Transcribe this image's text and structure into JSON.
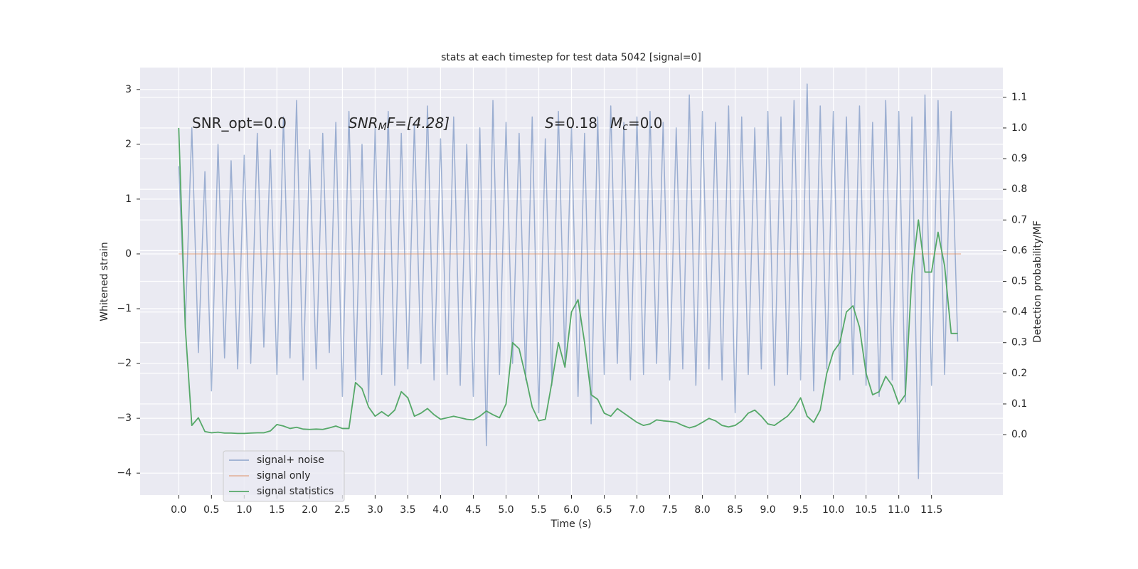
{
  "chart_data": {
    "type": "line",
    "title": "stats at each timestep for test data 5042 [signal=0]",
    "xlabel": "Time (s)",
    "ylabel": "Whitened strain",
    "y2label": "Detection probability/MF",
    "annotations": [
      {
        "base": "SNR_opt=0.0"
      },
      {
        "base": "SNR",
        "sub": "M",
        "rest": "F=[4.28]"
      },
      {
        "base": "S",
        "rest": "=0.18"
      },
      {
        "base": "M",
        "sub": "c",
        "rest": "=0.0"
      }
    ],
    "xlim": [
      -0.59,
      12.59
    ],
    "ylim": [
      -4.4,
      3.4
    ],
    "y2lim": [
      -0.197,
      1.197
    ],
    "xticks": [
      {
        "value": 0,
        "label": "0.0"
      },
      {
        "value": 0.5,
        "label": "0.5"
      },
      {
        "value": 1,
        "label": "1.0"
      },
      {
        "value": 1.5,
        "label": "1.5"
      },
      {
        "value": 2,
        "label": "2.0"
      },
      {
        "value": 2.5,
        "label": "2.5"
      },
      {
        "value": 3,
        "label": "3.0"
      },
      {
        "value": 3.5,
        "label": "3.5"
      },
      {
        "value": 4,
        "label": "4.0"
      },
      {
        "value": 4.5,
        "label": "4.5"
      },
      {
        "value": 5,
        "label": "5.0"
      },
      {
        "value": 5.5,
        "label": "5.5"
      },
      {
        "value": 6,
        "label": "6.0"
      },
      {
        "value": 6.5,
        "label": "6.5"
      },
      {
        "value": 7,
        "label": "7.0"
      },
      {
        "value": 7.5,
        "label": "7.5"
      },
      {
        "value": 8,
        "label": "8.0"
      },
      {
        "value": 8.5,
        "label": "8.5"
      },
      {
        "value": 9,
        "label": "9.0"
      },
      {
        "value": 9.5,
        "label": "9.5"
      },
      {
        "value": 10,
        "label": "10.0"
      },
      {
        "value": 10.5,
        "label": "10.5"
      },
      {
        "value": 11,
        "label": "11.0"
      },
      {
        "value": 11.5,
        "label": "11.5"
      }
    ],
    "yticks": [
      {
        "value": -4,
        "label": "−4"
      },
      {
        "value": -3,
        "label": "−3"
      },
      {
        "value": -2,
        "label": "−2"
      },
      {
        "value": -1,
        "label": "−1"
      },
      0,
      1,
      2,
      3
    ],
    "y2ticks": [
      {
        "value": 0,
        "label": "0.0"
      },
      {
        "value": 0.1,
        "label": "0.1"
      },
      {
        "value": 0.2,
        "label": "0.2"
      },
      {
        "value": 0.3,
        "label": "0.3"
      },
      {
        "value": 0.4,
        "label": "0.4"
      },
      {
        "value": 0.5,
        "label": "0.5"
      },
      {
        "value": 0.6,
        "label": "0.6"
      },
      {
        "value": 0.7,
        "label": "0.7"
      },
      {
        "value": 0.8,
        "label": "0.8"
      },
      {
        "value": 0.9,
        "label": "0.9"
      },
      {
        "value": 1,
        "label": "1.0"
      },
      {
        "value": 1.1,
        "label": "1.1"
      }
    ],
    "grid": true,
    "legend": "lower left",
    "series": [
      {
        "name": "signal+ noise",
        "color": "#4c72b0",
        "opacity": 0.5,
        "x": [
          0,
          0.1,
          0.2,
          0.3,
          0.4,
          0.5,
          0.6,
          0.7,
          0.8,
          0.9,
          1,
          1.1,
          1.2,
          1.3,
          1.4,
          1.5,
          1.6,
          1.7,
          1.8,
          1.9,
          2,
          2.1,
          2.2,
          2.3,
          2.4,
          2.5,
          2.6,
          2.7,
          2.8,
          2.9,
          3,
          3.1,
          3.2,
          3.3,
          3.4,
          3.5,
          3.6,
          3.7,
          3.8,
          3.9,
          4,
          4.1,
          4.2,
          4.3,
          4.4,
          4.5,
          4.6,
          4.7,
          4.8,
          4.9,
          5,
          5.1,
          5.2,
          5.3,
          5.4,
          5.5,
          5.6,
          5.7,
          5.8,
          5.9,
          6,
          6.1,
          6.2,
          6.3,
          6.4,
          6.5,
          6.6,
          6.7,
          6.8,
          6.9,
          7,
          7.1,
          7.2,
          7.3,
          7.4,
          7.5,
          7.6,
          7.7,
          7.8,
          7.9,
          8,
          8.1,
          8.2,
          8.3,
          8.4,
          8.5,
          8.6,
          8.7,
          8.8,
          8.9,
          9,
          9.1,
          9.2,
          9.3,
          9.4,
          9.5,
          9.6,
          9.7,
          9.8,
          9.9,
          10,
          10.1,
          10.2,
          10.3,
          10.4,
          10.5,
          10.6,
          10.7,
          10.8,
          10.9,
          11,
          11.1,
          11.2,
          11.3,
          11.4,
          11.5,
          11.6,
          11.7,
          11.8,
          11.9
        ],
        "values": [
          1.6,
          -1.3,
          2.3,
          -1.8,
          1.5,
          -2.5,
          2.0,
          -1.9,
          1.7,
          -2.1,
          1.8,
          -2.0,
          2.2,
          -1.7,
          1.9,
          -2.2,
          2.5,
          -1.9,
          2.8,
          -2.3,
          1.9,
          -2.1,
          2.2,
          -1.8,
          2.4,
          -2.6,
          2.6,
          -2.3,
          2.0,
          -2.7,
          2.3,
          -2.2,
          2.6,
          -2.4,
          2.2,
          -2.1,
          2.4,
          -2.0,
          2.7,
          -2.3,
          2.1,
          -2.2,
          2.5,
          -2.4,
          2.0,
          -2.6,
          2.3,
          -3.5,
          2.8,
          -2.2,
          2.4,
          -2.0,
          2.2,
          -2.3,
          2.5,
          -2.9,
          2.1,
          -2.4,
          2.6,
          -2.0,
          2.3,
          -2.6,
          2.2,
          -3.1,
          2.5,
          -2.2,
          2.7,
          -2.0,
          2.4,
          -2.3,
          2.5,
          -2.2,
          2.6,
          -2.0,
          2.4,
          -2.3,
          2.3,
          -2.1,
          2.9,
          -2.4,
          2.6,
          -2.1,
          2.4,
          -2.3,
          2.7,
          -2.9,
          2.5,
          -2.2,
          2.3,
          -2.1,
          2.6,
          -2.4,
          2.5,
          -2.2,
          2.8,
          -2.3,
          3.1,
          -2.5,
          2.7,
          -2.1,
          2.6,
          -2.3,
          2.5,
          -2.2,
          2.7,
          -2.4,
          2.4,
          -2.6,
          2.8,
          -2.3,
          2.6,
          -2.7,
          2.5,
          -4.1,
          2.9,
          -2.4,
          2.8,
          -2.2,
          2.6,
          -1.6
        ]
      },
      {
        "name": "signal only",
        "color": "#dd8452",
        "opacity": 0.5,
        "x": [
          0,
          11.95
        ],
        "values": [
          0,
          0
        ]
      },
      {
        "name": "signal statistics",
        "color": "#55a868",
        "opacity": 1,
        "axis": "y2",
        "x": [
          0,
          0.1,
          0.2,
          0.3,
          0.4,
          0.5,
          0.6,
          0.7,
          0.8,
          0.9,
          1,
          1.1,
          1.2,
          1.3,
          1.4,
          1.5,
          1.6,
          1.7,
          1.8,
          1.9,
          2,
          2.1,
          2.2,
          2.3,
          2.4,
          2.5,
          2.6,
          2.7,
          2.8,
          2.9,
          3,
          3.1,
          3.2,
          3.3,
          3.4,
          3.5,
          3.6,
          3.7,
          3.8,
          3.9,
          4,
          4.1,
          4.2,
          4.3,
          4.4,
          4.5,
          4.6,
          4.7,
          4.8,
          4.9,
          5,
          5.1,
          5.2,
          5.3,
          5.4,
          5.5,
          5.6,
          5.7,
          5.8,
          5.9,
          6,
          6.1,
          6.2,
          6.3,
          6.4,
          6.5,
          6.6,
          6.7,
          6.8,
          6.9,
          7,
          7.1,
          7.2,
          7.3,
          7.4,
          7.5,
          7.6,
          7.7,
          7.8,
          7.9,
          8,
          8.1,
          8.2,
          8.3,
          8.4,
          8.5,
          8.6,
          8.7,
          8.8,
          8.9,
          9,
          9.1,
          9.2,
          9.3,
          9.4,
          9.5,
          9.6,
          9.7,
          9.8,
          9.9,
          10,
          10.1,
          10.2,
          10.3,
          10.4,
          10.5,
          10.6,
          10.7,
          10.8,
          10.9,
          11,
          11.1,
          11.2,
          11.3,
          11.4,
          11.5,
          11.6,
          11.7,
          11.8,
          11.9
        ],
        "values": [
          1.0,
          0.35,
          0.03,
          0.055,
          0.01,
          0.006,
          0.008,
          0.005,
          0.005,
          0.004,
          0.004,
          0.005,
          0.006,
          0.006,
          0.012,
          0.033,
          0.028,
          0.02,
          0.024,
          0.018,
          0.017,
          0.018,
          0.017,
          0.022,
          0.028,
          0.02,
          0.02,
          0.17,
          0.15,
          0.09,
          0.06,
          0.075,
          0.06,
          0.08,
          0.14,
          0.12,
          0.06,
          0.07,
          0.085,
          0.065,
          0.05,
          0.055,
          0.06,
          0.055,
          0.05,
          0.048,
          0.06,
          0.077,
          0.065,
          0.055,
          0.1,
          0.3,
          0.28,
          0.19,
          0.09,
          0.045,
          0.05,
          0.17,
          0.3,
          0.22,
          0.4,
          0.44,
          0.3,
          0.13,
          0.115,
          0.07,
          0.06,
          0.085,
          0.07,
          0.055,
          0.04,
          0.03,
          0.035,
          0.048,
          0.045,
          0.043,
          0.04,
          0.03,
          0.022,
          0.028,
          0.04,
          0.053,
          0.045,
          0.03,
          0.025,
          0.03,
          0.045,
          0.07,
          0.08,
          0.06,
          0.035,
          0.03,
          0.045,
          0.06,
          0.085,
          0.12,
          0.06,
          0.04,
          0.08,
          0.2,
          0.27,
          0.3,
          0.4,
          0.42,
          0.35,
          0.2,
          0.13,
          0.14,
          0.19,
          0.16,
          0.1,
          0.13,
          0.52,
          0.7,
          0.53,
          0.53,
          0.66,
          0.55,
          0.33,
          0.33
        ]
      }
    ]
  }
}
